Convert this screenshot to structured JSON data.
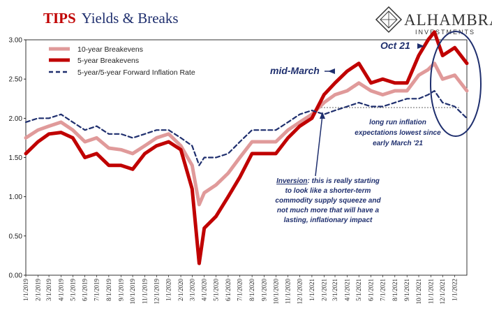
{
  "header": {
    "title_accent": "TIPS",
    "title_rest": "Yields & Breaks",
    "logo_name": "ALHAMBRA",
    "logo_sub": "INVESTMENTS"
  },
  "colors": {
    "ten_year": "#e09a9a",
    "five_year": "#c00000",
    "forward": "#1f2f6e",
    "annotation": "#1f2f6e"
  },
  "chart_data": {
    "type": "line",
    "title": "TIPS Yields & Breaks",
    "ylim": [
      0,
      3
    ],
    "yticks": [
      "0.00",
      "0.50",
      "1.00",
      "1.50",
      "2.00",
      "2.50",
      "3.00"
    ],
    "xlim": [
      "2019-01-01",
      "2022-02-01"
    ],
    "xticks": [
      "1/1/2019",
      "2/1/2019",
      "3/1/2019",
      "4/1/2019",
      "5/1/2019",
      "6/1/2019",
      "7/1/2019",
      "8/1/2019",
      "9/1/2019",
      "10/1/2019",
      "11/1/2019",
      "12/1/2019",
      "1/1/2020",
      "2/1/2020",
      "3/1/2020",
      "4/1/2020",
      "5/1/2020",
      "6/1/2020",
      "7/1/2020",
      "8/1/2020",
      "9/1/2020",
      "10/1/2020",
      "11/1/2020",
      "12/1/2020",
      "1/1/2021",
      "2/1/2021",
      "3/1/2021",
      "4/1/2021",
      "5/1/2021",
      "6/1/2021",
      "7/1/2021",
      "8/1/2021",
      "9/1/2021",
      "10/1/2021",
      "11/1/2021",
      "12/1/2021",
      "1/1/2022"
    ],
    "legend_position": "top-left",
    "series": [
      {
        "name": "10-year Breakevens",
        "style": "solid",
        "x": [
          "2019-01-01",
          "2019-02-01",
          "2019-03-01",
          "2019-04-01",
          "2019-05-01",
          "2019-06-01",
          "2019-07-01",
          "2019-08-01",
          "2019-09-01",
          "2019-10-01",
          "2019-11-01",
          "2019-12-01",
          "2020-01-01",
          "2020-02-01",
          "2020-03-01",
          "2020-03-19",
          "2020-04-01",
          "2020-05-01",
          "2020-06-01",
          "2020-07-01",
          "2020-08-01",
          "2020-09-01",
          "2020-10-01",
          "2020-11-01",
          "2020-12-01",
          "2021-01-01",
          "2021-02-01",
          "2021-03-01",
          "2021-04-01",
          "2021-05-01",
          "2021-06-01",
          "2021-07-01",
          "2021-08-01",
          "2021-09-01",
          "2021-10-01",
          "2021-10-25",
          "2021-11-10",
          "2021-12-01",
          "2022-01-01",
          "2022-02-01"
        ],
        "y": [
          1.75,
          1.85,
          1.9,
          1.95,
          1.85,
          1.7,
          1.75,
          1.62,
          1.6,
          1.55,
          1.65,
          1.75,
          1.8,
          1.65,
          1.4,
          0.9,
          1.05,
          1.15,
          1.3,
          1.5,
          1.7,
          1.7,
          1.7,
          1.85,
          1.95,
          2.05,
          2.2,
          2.3,
          2.35,
          2.45,
          2.35,
          2.3,
          2.35,
          2.35,
          2.55,
          2.62,
          2.7,
          2.5,
          2.55,
          2.35
        ]
      },
      {
        "name": "5-year Breakevens",
        "style": "solid",
        "x": [
          "2019-01-01",
          "2019-02-01",
          "2019-03-01",
          "2019-04-01",
          "2019-05-01",
          "2019-06-01",
          "2019-07-01",
          "2019-08-01",
          "2019-09-01",
          "2019-10-01",
          "2019-11-01",
          "2019-12-01",
          "2020-01-01",
          "2020-02-01",
          "2020-03-01",
          "2020-03-19",
          "2020-04-01",
          "2020-05-01",
          "2020-06-01",
          "2020-07-01",
          "2020-08-01",
          "2020-09-01",
          "2020-10-01",
          "2020-11-01",
          "2020-12-01",
          "2021-01-01",
          "2021-02-01",
          "2021-03-01",
          "2021-04-01",
          "2021-05-01",
          "2021-06-01",
          "2021-07-01",
          "2021-08-01",
          "2021-09-01",
          "2021-10-01",
          "2021-10-25",
          "2021-11-10",
          "2021-12-01",
          "2022-01-01",
          "2022-02-01"
        ],
        "y": [
          1.55,
          1.7,
          1.8,
          1.82,
          1.75,
          1.5,
          1.55,
          1.4,
          1.4,
          1.35,
          1.55,
          1.65,
          1.7,
          1.6,
          1.1,
          0.15,
          0.6,
          0.75,
          1.0,
          1.25,
          1.55,
          1.55,
          1.55,
          1.75,
          1.9,
          2.0,
          2.3,
          2.45,
          2.6,
          2.7,
          2.45,
          2.5,
          2.45,
          2.45,
          2.8,
          3.0,
          3.1,
          2.8,
          2.9,
          2.7
        ]
      },
      {
        "name": "5-year/5-year Forward Inflation Rate",
        "style": "dashed",
        "x": [
          "2019-01-01",
          "2019-02-01",
          "2019-03-01",
          "2019-04-01",
          "2019-05-01",
          "2019-06-01",
          "2019-07-01",
          "2019-08-01",
          "2019-09-01",
          "2019-10-01",
          "2019-11-01",
          "2019-12-01",
          "2020-01-01",
          "2020-02-01",
          "2020-03-01",
          "2020-03-19",
          "2020-04-01",
          "2020-05-01",
          "2020-06-01",
          "2020-07-01",
          "2020-08-01",
          "2020-09-01",
          "2020-10-01",
          "2020-11-01",
          "2020-12-01",
          "2021-01-01",
          "2021-02-01",
          "2021-03-01",
          "2021-04-01",
          "2021-05-01",
          "2021-06-01",
          "2021-07-01",
          "2021-08-01",
          "2021-09-01",
          "2021-10-01",
          "2021-10-25",
          "2021-11-10",
          "2021-12-01",
          "2022-01-01",
          "2022-02-01"
        ],
        "y": [
          1.95,
          2.0,
          2.0,
          2.05,
          1.95,
          1.85,
          1.9,
          1.8,
          1.8,
          1.75,
          1.8,
          1.85,
          1.85,
          1.75,
          1.65,
          1.4,
          1.5,
          1.5,
          1.55,
          1.7,
          1.85,
          1.85,
          1.85,
          1.95,
          2.05,
          2.1,
          2.05,
          2.1,
          2.15,
          2.2,
          2.15,
          2.15,
          2.2,
          2.25,
          2.25,
          2.3,
          2.35,
          2.2,
          2.15,
          2.0
        ]
      }
    ],
    "annotations": {
      "mid_march": "mid-March",
      "oct_21": "Oct 21",
      "long_run": [
        "long run inflation",
        "expectations lowest since",
        "early March '21"
      ],
      "inversion_label": "Inversion",
      "inversion": [
        ": this is really starting",
        "to look like a shorter-term",
        "commodity supply squeeze and",
        "not much more that will have a",
        "lasting, inflationary impact"
      ]
    }
  }
}
